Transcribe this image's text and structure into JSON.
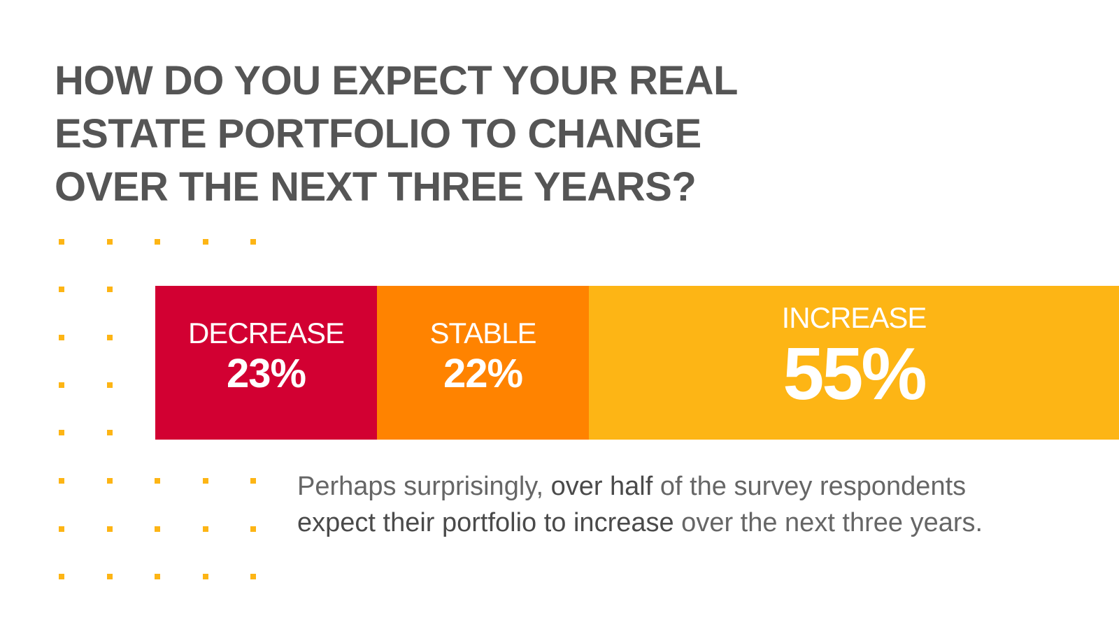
{
  "title_lines": [
    "HOW DO YOU EXPECT YOUR REAL",
    "ESTATE PORTFOLIO TO CHANGE",
    "OVER THE NEXT THREE YEARS?"
  ],
  "chart_data": {
    "type": "bar",
    "orientation": "horizontal-stacked",
    "title": "HOW DO YOU EXPECT YOUR REAL ESTATE PORTFOLIO TO CHANGE OVER THE NEXT THREE YEARS?",
    "categories": [
      "DECREASE",
      "STABLE",
      "INCREASE"
    ],
    "values": [
      23,
      22,
      55
    ],
    "value_labels": [
      "23%",
      "22%",
      "55%"
    ],
    "unit": "%",
    "xlim": [
      0,
      100
    ],
    "colors": [
      "#D20032",
      "#FF8300",
      "#FDB515"
    ],
    "grid": false,
    "legend": "none"
  },
  "caption": {
    "line1": [
      {
        "text": "Perhaps surprisingly, ",
        "emphasis": false
      },
      {
        "text": "over half",
        "emphasis": true
      },
      {
        "text": " of the survey respondents",
        "emphasis": false
      }
    ],
    "line2": [
      {
        "text": "expect their portfolio to increase",
        "emphasis": true
      },
      {
        "text": " over the next three years.",
        "emphasis": false
      }
    ]
  },
  "decoration": {
    "dot_color": "#FDB515"
  }
}
